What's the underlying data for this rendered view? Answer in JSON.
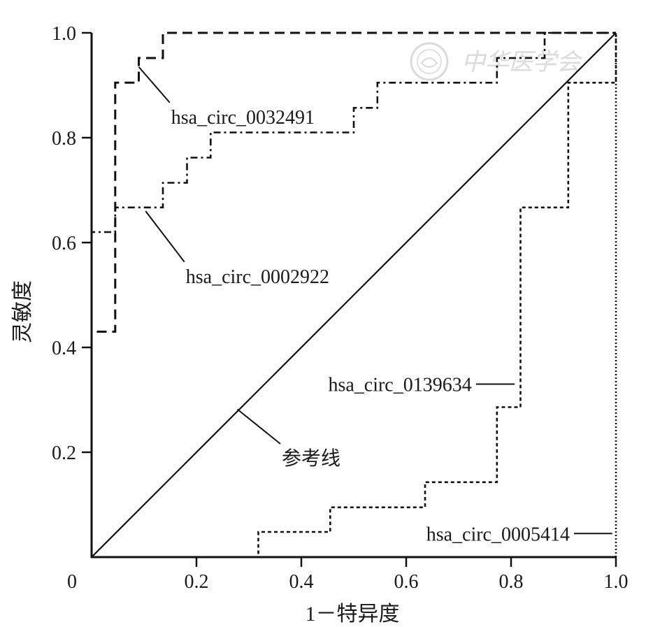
{
  "chart_data": {
    "type": "line",
    "xlabel": "1－特异度",
    "ylabel": "灵敏度",
    "xlim": [
      0,
      1
    ],
    "ylim": [
      0,
      1
    ],
    "x_ticks": [
      {
        "value": 0,
        "label": "0"
      },
      {
        "value": 0.2,
        "label": "0.2"
      },
      {
        "value": 0.4,
        "label": "0.4"
      },
      {
        "value": 0.6,
        "label": "0.6"
      },
      {
        "value": 0.8,
        "label": "0.8"
      },
      {
        "value": 1.0,
        "label": "1.0"
      }
    ],
    "y_ticks": [
      {
        "value": 0.2,
        "label": "0.2"
      },
      {
        "value": 0.4,
        "label": "0.4"
      },
      {
        "value": 0.6,
        "label": "0.6"
      },
      {
        "value": 0.8,
        "label": "0.8"
      },
      {
        "value": 1.0,
        "label": "1.0"
      }
    ],
    "grid": false,
    "legend": "none",
    "series": [
      {
        "name": "hsa_circ_0032491",
        "style": "dashed",
        "color": "#111111",
        "points": [
          [
            0,
            0
          ],
          [
            0,
            0.43
          ],
          [
            0.045,
            0.43
          ],
          [
            0.045,
            0.62
          ],
          [
            0.045,
            0.905
          ],
          [
            0.09,
            0.905
          ],
          [
            0.09,
            0.952
          ],
          [
            0.136,
            0.952
          ],
          [
            0.136,
            1.0
          ],
          [
            1.0,
            1.0
          ]
        ]
      },
      {
        "name": "hsa_circ_0002922",
        "style": "dash-dot",
        "color": "#111111",
        "points": [
          [
            0,
            0
          ],
          [
            0,
            0.43
          ],
          [
            0,
            0.62
          ],
          [
            0.045,
            0.62
          ],
          [
            0.045,
            0.667
          ],
          [
            0.136,
            0.667
          ],
          [
            0.136,
            0.714
          ],
          [
            0.182,
            0.714
          ],
          [
            0.182,
            0.762
          ],
          [
            0.227,
            0.762
          ],
          [
            0.227,
            0.81
          ],
          [
            0.5,
            0.81
          ],
          [
            0.5,
            0.857
          ],
          [
            0.545,
            0.857
          ],
          [
            0.545,
            0.905
          ],
          [
            0.773,
            0.905
          ],
          [
            0.773,
            0.952
          ],
          [
            0.864,
            0.952
          ],
          [
            0.864,
            1.0
          ],
          [
            1.0,
            1.0
          ]
        ]
      },
      {
        "name": "hsa_circ_0139634",
        "style": "dotted",
        "color": "#111111",
        "points": [
          [
            0,
            0
          ],
          [
            0.318,
            0
          ],
          [
            0.318,
            0.048
          ],
          [
            0.455,
            0.048
          ],
          [
            0.455,
            0.095
          ],
          [
            0.636,
            0.095
          ],
          [
            0.636,
            0.143
          ],
          [
            0.773,
            0.143
          ],
          [
            0.773,
            0.286
          ],
          [
            0.818,
            0.286
          ],
          [
            0.818,
            0.667
          ],
          [
            0.909,
            0.667
          ],
          [
            0.909,
            0.905
          ],
          [
            1.0,
            0.905
          ],
          [
            1.0,
            1.0
          ]
        ]
      },
      {
        "name": "hsa_circ_0005414",
        "style": "fine-dotted",
        "color": "#111111",
        "points": [
          [
            0,
            0
          ],
          [
            1.0,
            0
          ],
          [
            1.0,
            1.0
          ]
        ]
      },
      {
        "name": "参考线",
        "style": "solid",
        "color": "#111111",
        "points": [
          [
            0,
            0
          ],
          [
            1,
            1
          ]
        ]
      }
    ],
    "annotations": [
      {
        "text": "hsa_circ_0032491",
        "point": [
          0.09,
          0.935
        ],
        "label_at": [
          0.149,
          0.867
        ],
        "anchor": "start"
      },
      {
        "text": "hsa_circ_0002922",
        "point": [
          0.103,
          0.66
        ],
        "label_at": [
          0.177,
          0.563
        ],
        "anchor": "start"
      },
      {
        "text": "hsa_circ_0139634",
        "point": [
          0.807,
          0.33
        ],
        "label_at": [
          0.733,
          0.33
        ],
        "anchor": "end"
      },
      {
        "text": "参考线",
        "point": [
          0.278,
          0.282
        ],
        "label_at": [
          0.36,
          0.216
        ],
        "anchor": "start"
      },
      {
        "text": "hsa_circ_0005414",
        "point": [
          0.993,
          0.045
        ],
        "label_at": [
          0.92,
          0.045
        ],
        "anchor": "end"
      }
    ]
  },
  "watermark": {
    "text": "中华医学会",
    "icon": "society-seal-icon"
  }
}
